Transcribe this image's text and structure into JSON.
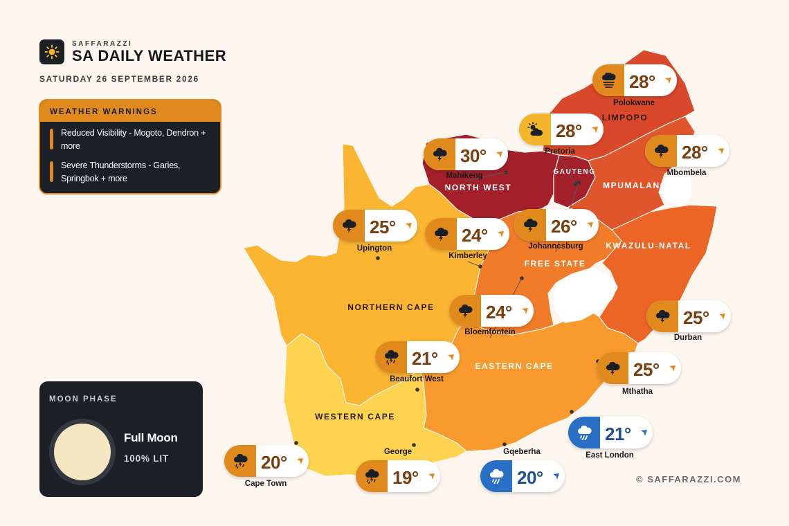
{
  "brand": {
    "small": "SAFFARAZZI",
    "title": "SA DAILY WEATHER",
    "logo_icon": "sun-icon"
  },
  "date": "SATURDAY 26 SEPTEMBER 2026",
  "warnings": {
    "heading": "WEATHER WARNINGS",
    "items": [
      {
        "text": "Reduced Visibility - Mogoto, Dendron + more"
      },
      {
        "text": "Severe Thunderstorms - Garies, Springbok + more"
      }
    ]
  },
  "moon": {
    "heading": "MOON PHASE",
    "phase": "Full Moon",
    "lit": "100% LIT"
  },
  "copyright": "© SAFFARAZZI.COM",
  "provinces": {
    "limpopo": {
      "label": "LIMPOPO",
      "color": "#d9482a"
    },
    "north_west": {
      "label": "NORTH WEST",
      "color": "#a3202a"
    },
    "gauteng": {
      "label": "GAUTENG",
      "color": "#a3202a"
    },
    "mpumalanga": {
      "label": "MPUMALANGA",
      "color": "#e0562c"
    },
    "kwazulu_natal": {
      "label": "KWAZULU-NATAL",
      "color": "#ea6526"
    },
    "free_state": {
      "label": "FREE STATE",
      "color": "#f07c2a"
    },
    "northern_cape": {
      "label": "NORTHERN CAPE",
      "color": "#fbb532"
    },
    "western_cape": {
      "label": "WESTERN CAPE",
      "color": "#fed34f"
    },
    "eastern_cape": {
      "label": "EASTERN CAPE",
      "color": "#f99a2e"
    }
  },
  "cities": [
    {
      "id": "polokwane",
      "name": "Polokwane",
      "temp": "28°",
      "icon": "fog-icon",
      "tone": "orange"
    },
    {
      "id": "pretoria",
      "name": "Pretoria",
      "temp": "28°",
      "icon": "partly-cloudy-icon",
      "tone": "yellow"
    },
    {
      "id": "mahikeng",
      "name": "Mahikeng",
      "temp": "30°",
      "icon": "thunderstorm-icon",
      "tone": "orange"
    },
    {
      "id": "mbombela",
      "name": "Mbombela",
      "temp": "28°",
      "icon": "thunderstorm-icon",
      "tone": "orange"
    },
    {
      "id": "upington",
      "name": "Upington",
      "temp": "25°",
      "icon": "thunderstorm-icon",
      "tone": "orange"
    },
    {
      "id": "kimberley",
      "name": "Kimberley",
      "temp": "24°",
      "icon": "thunderstorm-icon",
      "tone": "orange"
    },
    {
      "id": "johannesburg",
      "name": "Johannesburg",
      "temp": "26°",
      "icon": "thunderstorm-icon",
      "tone": "orange"
    },
    {
      "id": "bloemfontein",
      "name": "Bloemfontein",
      "temp": "24°",
      "icon": "thunderstorm-icon",
      "tone": "orange"
    },
    {
      "id": "durban",
      "name": "Durban",
      "temp": "25°",
      "icon": "thunderstorm-icon",
      "tone": "orange"
    },
    {
      "id": "beaufort_west",
      "name": "Beaufort West",
      "temp": "21°",
      "icon": "thunder-rain-icon",
      "tone": "orange"
    },
    {
      "id": "mthatha",
      "name": "Mthatha",
      "temp": "25°",
      "icon": "thunderstorm-icon",
      "tone": "orange"
    },
    {
      "id": "east_london",
      "name": "East London",
      "temp": "21°",
      "icon": "rain-icon",
      "tone": "blue"
    },
    {
      "id": "cape_town",
      "name": "Cape Town",
      "temp": "20°",
      "icon": "thunder-rain-icon",
      "tone": "orange"
    },
    {
      "id": "george",
      "name": "George",
      "temp": "19°",
      "icon": "thunder-rain-icon",
      "tone": "orange"
    },
    {
      "id": "gqeberha",
      "name": "Gqeberha",
      "temp": "20°",
      "icon": "rain-icon",
      "tone": "blue"
    }
  ],
  "tones": {
    "orange": {
      "icon_bg": "#e08a1e",
      "text": "#7a3e0e"
    },
    "yellow": {
      "icon_bg": "#f3b52b",
      "text": "#7a3e0e"
    },
    "blue": {
      "icon_bg": "#2a6fc6",
      "text": "#1f4f93"
    }
  }
}
